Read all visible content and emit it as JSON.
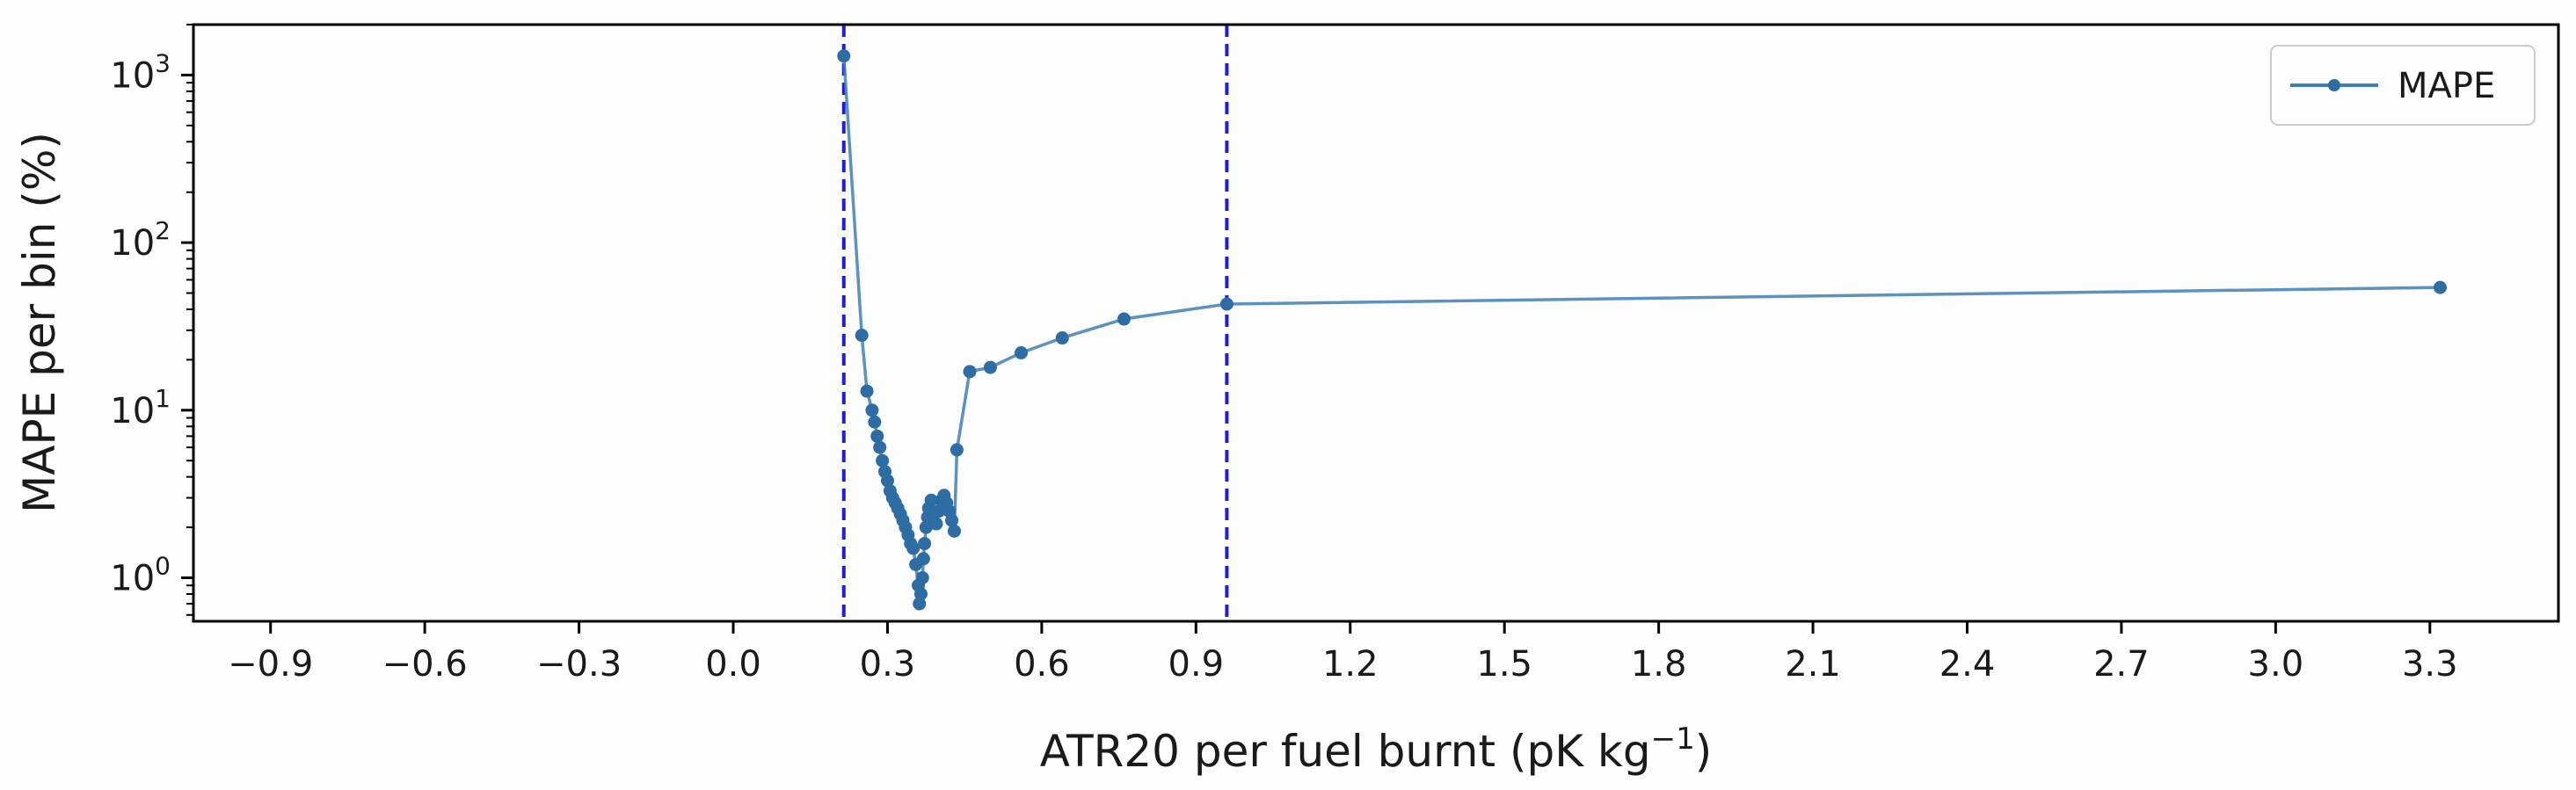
{
  "chart_data": {
    "type": "line",
    "xlabel": "ATR20 per fuel burnt (pK kg",
    "xlabel_sup": "−1",
    "xlabel_end": ")",
    "ylabel": "MAPE per bin (%)",
    "xlim": [
      -1.05,
      3.55
    ],
    "ylim": [
      0.55,
      2000
    ],
    "yscale": "log",
    "grid": false,
    "legend_position": "top-right",
    "x_ticks": [
      -0.9,
      -0.6,
      -0.3,
      0.0,
      0.3,
      0.6,
      0.9,
      1.2,
      1.5,
      1.8,
      2.1,
      2.4,
      2.7,
      3.0,
      3.3
    ],
    "x_tick_labels": [
      "−0.9",
      "−0.6",
      "−0.3",
      "0.0",
      "0.3",
      "0.6",
      "0.9",
      "1.2",
      "1.5",
      "1.8",
      "2.1",
      "2.4",
      "2.7",
      "3.0",
      "3.3"
    ],
    "y_ticks": [
      {
        "value": 1,
        "base": "10",
        "exp": "0"
      },
      {
        "value": 10,
        "base": "10",
        "exp": "1"
      },
      {
        "value": 100,
        "base": "10",
        "exp": "2"
      },
      {
        "value": 1000,
        "base": "10",
        "exp": "3"
      }
    ],
    "vlines": [
      0.215,
      0.96
    ],
    "vline_color": "#1f1fcf",
    "series": [
      {
        "name": "MAPE",
        "color": "#3f7fb1",
        "x": [
          0.215,
          0.25,
          0.26,
          0.27,
          0.275,
          0.28,
          0.285,
          0.29,
          0.295,
          0.3,
          0.305,
          0.31,
          0.315,
          0.32,
          0.325,
          0.33,
          0.335,
          0.34,
          0.345,
          0.35,
          0.355,
          0.36,
          0.362,
          0.365,
          0.368,
          0.37,
          0.372,
          0.375,
          0.378,
          0.38,
          0.385,
          0.39,
          0.395,
          0.4,
          0.405,
          0.41,
          0.415,
          0.42,
          0.425,
          0.43,
          0.435,
          0.46,
          0.5,
          0.56,
          0.64,
          0.76,
          0.96,
          3.32
        ],
        "values": [
          1300,
          28,
          13,
          10,
          8.5,
          7,
          6,
          5,
          4.3,
          3.8,
          3.3,
          3.0,
          2.8,
          2.6,
          2.4,
          2.2,
          2.0,
          1.8,
          1.6,
          1.5,
          1.2,
          0.9,
          0.7,
          0.8,
          1.0,
          1.3,
          1.6,
          2.0,
          2.3,
          2.6,
          2.9,
          2.4,
          2.1,
          2.5,
          2.9,
          3.1,
          2.8,
          2.5,
          2.2,
          1.9,
          5.8,
          17,
          18,
          22,
          27,
          35,
          43,
          54
        ]
      }
    ]
  }
}
